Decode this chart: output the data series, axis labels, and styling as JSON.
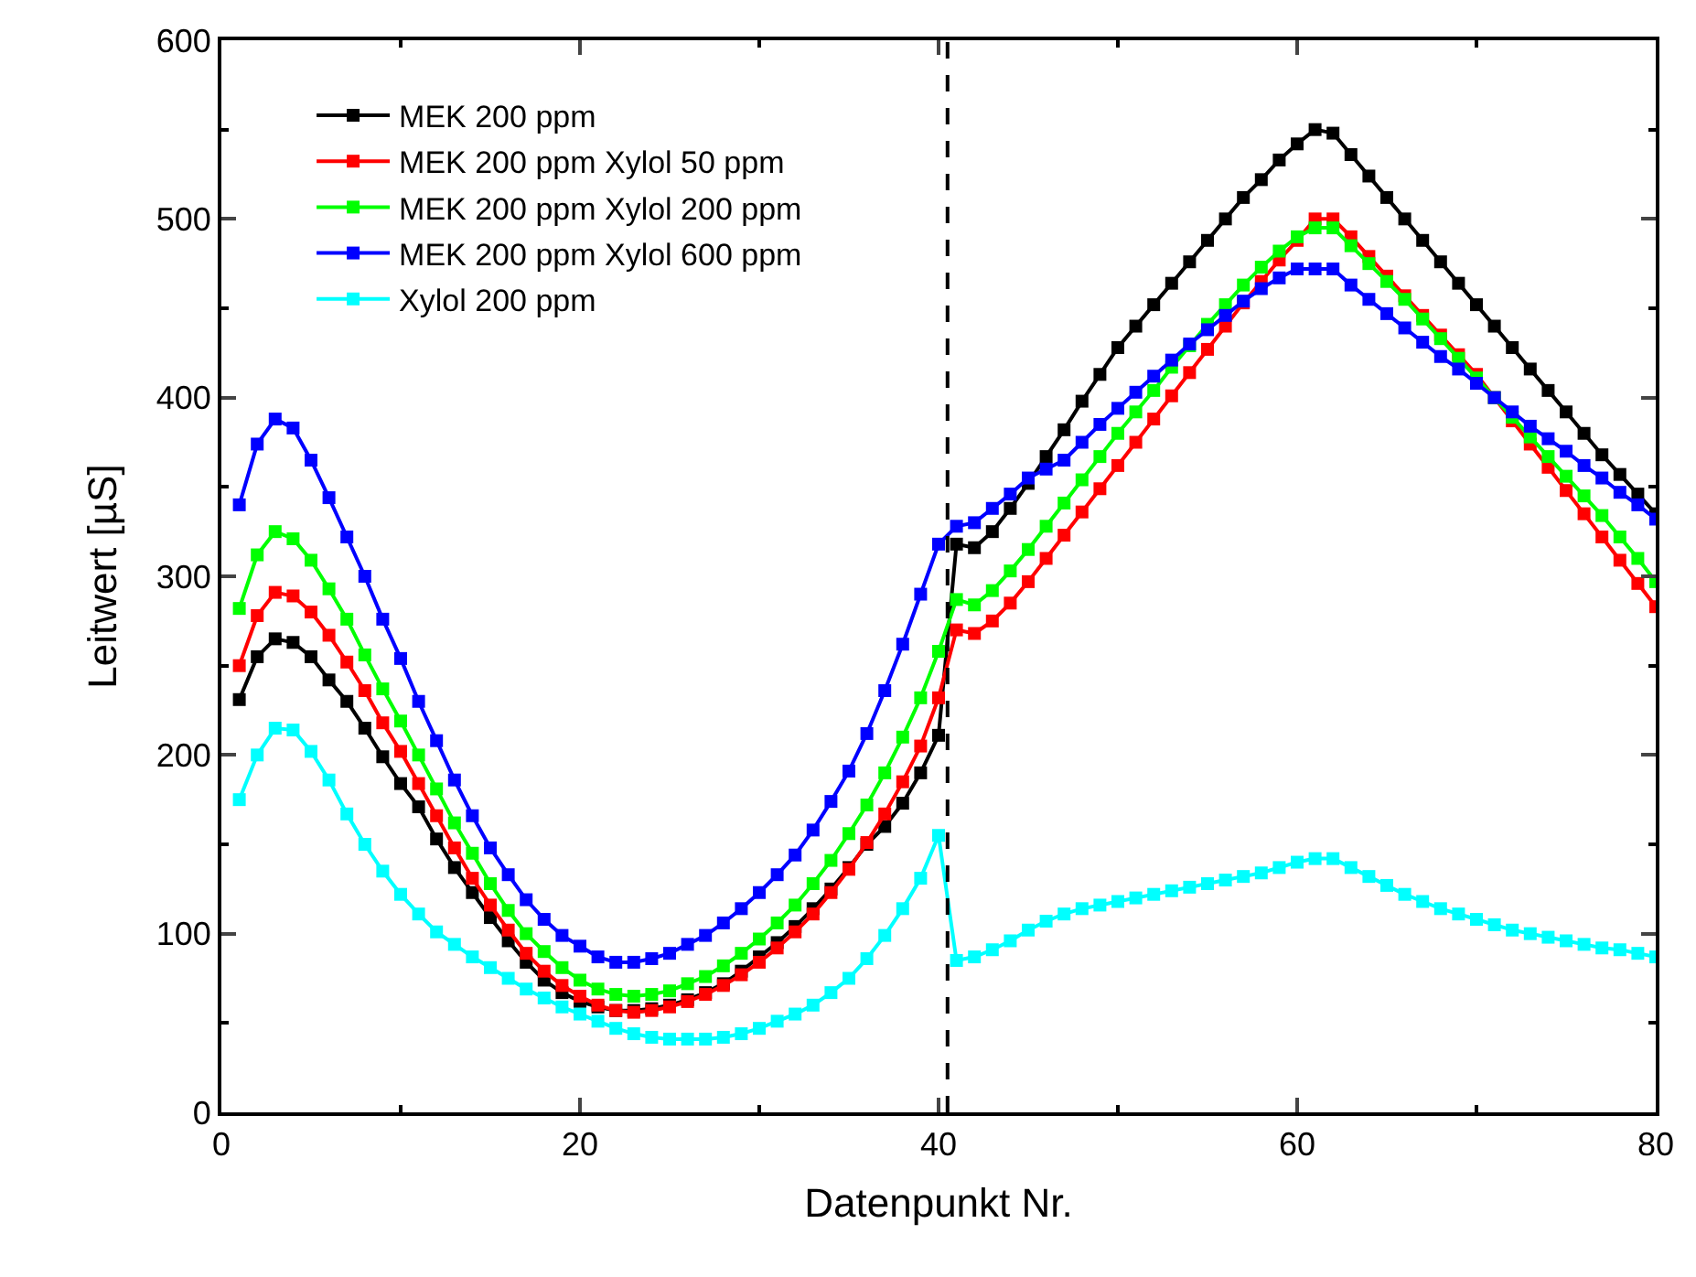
{
  "chart_data": {
    "type": "line",
    "xlabel": "Datenpunkt Nr.",
    "ylabel": "Leitwert [µS]",
    "x": [
      1,
      2,
      3,
      4,
      5,
      6,
      7,
      8,
      9,
      10,
      11,
      12,
      13,
      14,
      15,
      16,
      17,
      18,
      19,
      20,
      21,
      22,
      23,
      24,
      25,
      26,
      27,
      28,
      29,
      30,
      31,
      32,
      33,
      34,
      35,
      36,
      37,
      38,
      39,
      40,
      41,
      42,
      43,
      44,
      45,
      46,
      47,
      48,
      49,
      50,
      51,
      52,
      53,
      54,
      55,
      56,
      57,
      58,
      59,
      60,
      61,
      62,
      63,
      64,
      65,
      66,
      67,
      68,
      69,
      70,
      71,
      72,
      73,
      74,
      75,
      76,
      77,
      78,
      79,
      80
    ],
    "xlim": [
      0,
      80
    ],
    "xticks": [
      0,
      20,
      40,
      60,
      80
    ],
    "ylim": [
      0,
      600
    ],
    "yticks": [
      0,
      100,
      200,
      300,
      400,
      500,
      600
    ],
    "legend": "top left",
    "marker": "square",
    "line_style": "solid",
    "ref_lines": [
      {
        "axis": "x",
        "value": 40.5,
        "color": "#000000",
        "line_style": "dashed"
      }
    ],
    "series": [
      {
        "name": "MEK 200 ppm",
        "color": "#000000",
        "values": [
          231,
          255,
          265,
          263,
          255,
          242,
          230,
          215,
          199,
          184,
          171,
          153,
          137,
          123,
          109,
          96,
          84,
          74,
          67,
          62,
          59,
          57,
          57,
          58,
          60,
          63,
          67,
          72,
          79,
          87,
          95,
          104,
          114,
          125,
          137,
          150,
          160,
          173,
          190,
          211,
          318,
          316,
          325,
          338,
          352,
          367,
          382,
          398,
          413,
          428,
          440,
          452,
          464,
          476,
          488,
          500,
          512,
          522,
          533,
          542,
          550,
          548,
          536,
          524,
          512,
          500,
          488,
          476,
          464,
          452,
          440,
          428,
          416,
          404,
          392,
          380,
          368,
          357,
          346,
          335
        ]
      },
      {
        "name": "MEK 200 ppm Xylol 50 ppm",
        "color": "#ff0000",
        "values": [
          250,
          278,
          291,
          289,
          280,
          267,
          252,
          236,
          218,
          202,
          184,
          166,
          148,
          131,
          116,
          102,
          89,
          79,
          71,
          65,
          60,
          57,
          56,
          57,
          59,
          62,
          66,
          71,
          77,
          84,
          92,
          101,
          111,
          123,
          136,
          151,
          167,
          185,
          205,
          232,
          270,
          268,
          275,
          285,
          297,
          310,
          323,
          336,
          349,
          362,
          375,
          388,
          401,
          414,
          427,
          440,
          453,
          465,
          477,
          488,
          500,
          500,
          490,
          479,
          468,
          457,
          446,
          435,
          424,
          413,
          400,
          387,
          374,
          361,
          348,
          335,
          322,
          309,
          296,
          283
        ]
      },
      {
        "name": "MEK 200 ppm Xylol 200 ppm",
        "color": "#00ff00",
        "values": [
          282,
          312,
          325,
          321,
          309,
          293,
          276,
          256,
          237,
          219,
          200,
          181,
          162,
          145,
          128,
          113,
          100,
          90,
          81,
          74,
          69,
          66,
          65,
          66,
          68,
          72,
          76,
          82,
          89,
          97,
          106,
          116,
          128,
          141,
          156,
          172,
          190,
          210,
          232,
          258,
          287,
          284,
          292,
          303,
          315,
          328,
          341,
          354,
          367,
          380,
          392,
          404,
          417,
          429,
          441,
          452,
          463,
          473,
          482,
          490,
          495,
          495,
          485,
          475,
          465,
          455,
          444,
          433,
          422,
          411,
          400,
          389,
          378,
          367,
          356,
          345,
          334,
          322,
          310,
          297
        ]
      },
      {
        "name": "MEK 200 ppm Xylol 600 ppm",
        "color": "#0000ff",
        "values": [
          340,
          374,
          388,
          383,
          365,
          344,
          322,
          300,
          276,
          254,
          230,
          208,
          186,
          166,
          148,
          133,
          119,
          108,
          99,
          93,
          87,
          84,
          84,
          86,
          89,
          94,
          99,
          106,
          114,
          123,
          133,
          144,
          158,
          174,
          191,
          212,
          236,
          262,
          290,
          318,
          328,
          330,
          338,
          346,
          355,
          360,
          365,
          375,
          385,
          394,
          403,
          412,
          421,
          430,
          438,
          446,
          454,
          461,
          467,
          472,
          472,
          472,
          463,
          455,
          447,
          439,
          431,
          423,
          416,
          408,
          400,
          392,
          384,
          377,
          370,
          362,
          355,
          347,
          340,
          332
        ]
      },
      {
        "name": "Xylol 200 ppm",
        "color": "#00ffff",
        "values": [
          175,
          200,
          215,
          214,
          202,
          186,
          167,
          150,
          135,
          122,
          111,
          101,
          94,
          87,
          81,
          75,
          69,
          64,
          59,
          55,
          51,
          47,
          44,
          42,
          41,
          41,
          41,
          42,
          44,
          47,
          51,
          55,
          60,
          67,
          75,
          86,
          99,
          114,
          131,
          155,
          85,
          87,
          91,
          96,
          102,
          107,
          111,
          114,
          116,
          118,
          120,
          122,
          124,
          126,
          128,
          130,
          132,
          134,
          137,
          140,
          142,
          142,
          137,
          132,
          127,
          122,
          118,
          114,
          111,
          108,
          105,
          102,
          100,
          98,
          96,
          94,
          92,
          91,
          89,
          87
        ]
      }
    ]
  }
}
